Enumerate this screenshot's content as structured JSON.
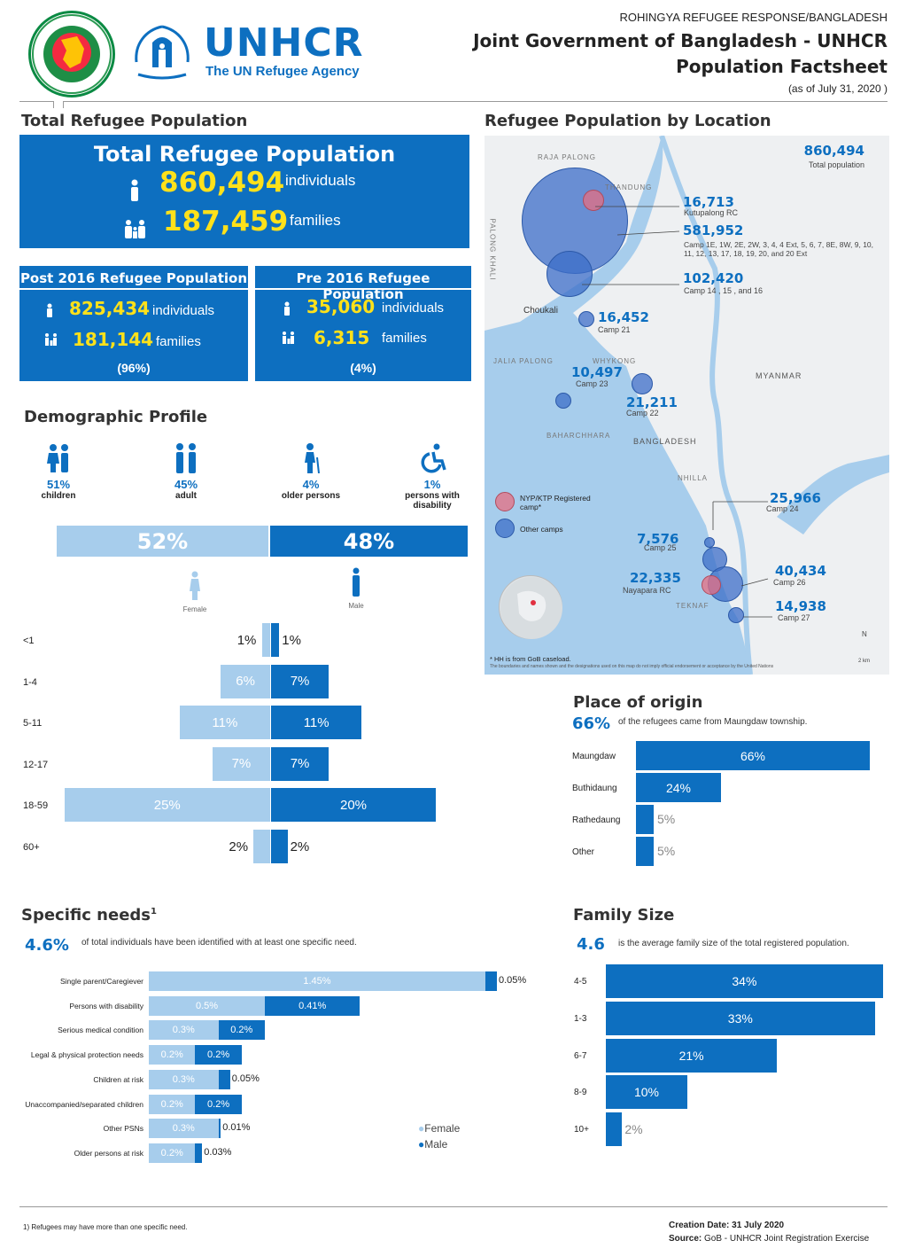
{
  "header": {
    "logo_gov_label": "Government of the People's Republic of Bangladesh",
    "unhcr_logo": "UNHCR",
    "unhcr_tag": "The UN Refugee Agency",
    "line1": "ROHINGYA REFUGEE RESPONSE/BANGLADESH",
    "line2": "Joint Government of Bangladesh - UNHCR",
    "line3": "Population Factsheet",
    "date": "(as of July 31, 2020 )"
  },
  "total": {
    "section_title": "Total Refugee Population",
    "box_title": "Total Refugee Population",
    "individuals": "860,494",
    "individuals_lbl": "individuals",
    "families": "187,459",
    "families_lbl": "families"
  },
  "post2016": {
    "title": "Post 2016 Refugee Population",
    "individuals": "825,434",
    "individuals_lbl": "individuals",
    "families": "181,144",
    "families_lbl": "families",
    "pct": "(96%)"
  },
  "pre2016": {
    "title": "Pre 2016 Refugee Population",
    "individuals": "35,060",
    "individuals_lbl": "individuals",
    "families": "6,315",
    "families_lbl": "families",
    "pct": "(4%)"
  },
  "demographic": {
    "title": "Demographic Profile",
    "items": [
      {
        "pct": "51%",
        "label": "children",
        "icon": "children-icon"
      },
      {
        "pct": "45%",
        "label": "adult",
        "icon": "adults-icon"
      },
      {
        "pct": "4%",
        "label": "older persons",
        "icon": "older-person-icon"
      },
      {
        "pct": "1%",
        "label": "persons with disability",
        "icon": "wheelchair-icon"
      }
    ],
    "female_pct": "52%",
    "male_pct": "48%",
    "female_lbl": "Female",
    "male_lbl": "Male",
    "pyramid": [
      {
        "age": "<1",
        "female": 1,
        "male": 1,
        "f_lbl": "1%",
        "m_lbl": "1%"
      },
      {
        "age": "1-4",
        "female": 6,
        "male": 7,
        "f_lbl": "6%",
        "m_lbl": "7%"
      },
      {
        "age": "5-11",
        "female": 11,
        "male": 11,
        "f_lbl": "11%",
        "m_lbl": "11%"
      },
      {
        "age": "12-17",
        "female": 7,
        "male": 7,
        "f_lbl": "7%",
        "m_lbl": "7%"
      },
      {
        "age": "18-59",
        "female": 25,
        "male": 20,
        "f_lbl": "25%",
        "m_lbl": "20%"
      },
      {
        "age": "60+",
        "female": 2,
        "male": 2,
        "f_lbl": "2%",
        "m_lbl": "2%"
      }
    ]
  },
  "map": {
    "title": "Refugee Population by Location",
    "total": "860,494",
    "total_lbl": "Total population",
    "kutupalong_num": "16,713",
    "kutupalong_lbl": "Kutupalong RC",
    "camps_num": "581,952",
    "camps_lbl": "Camp 1E, 1W, 2E, 2W, 3, 4, 4 Ext, 5, 6, 7, 8E, 8W, 9, 10, 11, 12, 13, 17, 18, 19, 20, and 20 Ext",
    "c14_num": "102,420",
    "c14_lbl": "Camp 14 , 15 , and 16",
    "c21_num": "16,452",
    "c21_lbl": "Camp 21",
    "c23_num": "10,497",
    "c23_lbl": "Camp 23",
    "c22_num": "21,211",
    "c22_lbl": "Camp 22",
    "c24_num": "25,966",
    "c24_lbl": "Camp 24",
    "c25_num": "7,576",
    "c25_lbl": "Camp 25",
    "c26_num": "40,434",
    "c26_lbl": "Camp 26",
    "nay_num": "22,335",
    "nay_lbl": "Nayapara RC",
    "c27_num": "14,938",
    "c27_lbl": "Camp 27",
    "place_raja": "RAJA PALONG",
    "place_thandung": "THANDUNG",
    "place_palong": "PALONG KHALI",
    "place_choukali": "Choukali",
    "place_jalia": "JALIA PALONG",
    "place_whykong": "WHYKONG",
    "place_baharchhara": "BAHARCHHARA",
    "place_myanmar": "MYANMAR",
    "place_bangladesh": "BANGLADESH",
    "place_nhilla": "NHILLA",
    "place_teknaf": "TEKNAF",
    "legend_red": "NYP/KTP Registered camp*",
    "legend_blue": "Other camps",
    "footnote": "* HH is from GoB caseload.",
    "disclaimer": "The boundaries and names shown and the designations used on this map do not imply official endorsement or acceptance by the United Nations",
    "scale": "2 km",
    "north": "N"
  },
  "origin": {
    "title": "Place of origin",
    "headline": "66%",
    "headline_text": "of the refugees came from Maungdaw township.",
    "rows": [
      {
        "label": "Maungdaw",
        "value": 66,
        "lbl": "66%"
      },
      {
        "label": "Buthidaung",
        "value": 24,
        "lbl": "24%"
      },
      {
        "label": "Rathedaung",
        "value": 5,
        "lbl": "5%"
      },
      {
        "label": "Other",
        "value": 5,
        "lbl": "5%"
      }
    ]
  },
  "needs": {
    "title": "Specific needs",
    "title_sup": "1",
    "headline": "4.6%",
    "headline_text": "of total individuals have been identified with at least one specific need.",
    "rows": [
      {
        "label": "Single parent/Caregiever",
        "female": 1.45,
        "male": 0.05,
        "f_lbl": "1.45%",
        "m_lbl": "0.05%"
      },
      {
        "label": "Persons with disability",
        "female": 0.5,
        "male": 0.41,
        "f_lbl": "0.5%",
        "m_lbl": "0.41%"
      },
      {
        "label": "Serious medical condition",
        "female": 0.3,
        "male": 0.2,
        "f_lbl": "0.3%",
        "m_lbl": "0.2%"
      },
      {
        "label": "Legal & physical protection needs",
        "female": 0.2,
        "male": 0.2,
        "f_lbl": "0.2%",
        "m_lbl": "0.2%"
      },
      {
        "label": "Children at risk",
        "female": 0.3,
        "male": 0.05,
        "f_lbl": "0.3%",
        "m_lbl": "0.05%"
      },
      {
        "label": "Unaccompanied/separated children",
        "female": 0.2,
        "male": 0.2,
        "f_lbl": "0.2%",
        "m_lbl": "0.2%"
      },
      {
        "label": "Other PSNs",
        "female": 0.3,
        "male": 0.01,
        "f_lbl": "0.3%",
        "m_lbl": "0.01%"
      },
      {
        "label": "Older persons at risk",
        "female": 0.2,
        "male": 0.03,
        "f_lbl": "0.2%",
        "m_lbl": "0.03%"
      }
    ],
    "legend_female": "Female",
    "legend_male": "Male"
  },
  "family": {
    "title": "Family Size",
    "headline": "4.6",
    "headline_text": "is the average family size of the total registered population.",
    "rows": [
      {
        "label": "4-5",
        "value": 34,
        "lbl": "34%"
      },
      {
        "label": "1-3",
        "value": 33,
        "lbl": "33%"
      },
      {
        "label": "6-7",
        "value": 21,
        "lbl": "21%"
      },
      {
        "label": "8-9",
        "value": 10,
        "lbl": "10%"
      },
      {
        "label": "10+",
        "value": 2,
        "lbl": "2%"
      }
    ]
  },
  "footer": {
    "note": "1) Refugees may have more than one specific need.",
    "creation_lbl": "Creation Date:",
    "creation_val": "31 July 2020",
    "source_lbl": "Source:",
    "source_val": "GoB - UNHCR Joint Registration Exercise"
  },
  "colors": {
    "brand_blue": "#0d6fc0",
    "light_blue": "#a7cdec",
    "highlight_yellow": "#ffe11a",
    "green": "#006a4e",
    "red": "#f42a41"
  }
}
